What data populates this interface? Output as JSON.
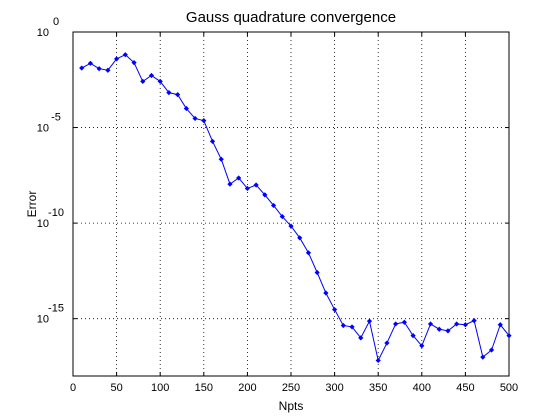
{
  "chart_data": {
    "type": "line",
    "title": "Gauss quadrature convergence",
    "xlabel": "Npts",
    "ylabel": "Error",
    "xlim": [
      0,
      500
    ],
    "ylim_log10": [
      -18,
      0
    ],
    "yscale": "log",
    "grid": true,
    "marker": "diamond",
    "x_ticks": [
      0,
      50,
      100,
      150,
      200,
      250,
      300,
      350,
      400,
      450,
      500
    ],
    "x_tick_labels": [
      "0",
      "50",
      "100",
      "150",
      "200",
      "250",
      "300",
      "350",
      "400",
      "450",
      "500"
    ],
    "y_ticks": [
      {
        "base": "10",
        "exp": "0",
        "log10": 0
      },
      {
        "base": "10",
        "exp": "-5",
        "log10": -5
      },
      {
        "base": "10",
        "exp": "-10",
        "log10": -10
      },
      {
        "base": "10",
        "exp": "-15",
        "log10": -15
      }
    ],
    "series": [
      {
        "color": "#0000ff",
        "x": [
          10,
          20,
          30,
          40,
          50,
          60,
          70,
          80,
          90,
          100,
          110,
          120,
          130,
          140,
          150,
          160,
          170,
          180,
          190,
          200,
          210,
          220,
          230,
          240,
          250,
          260,
          270,
          280,
          290,
          300,
          310,
          320,
          330,
          340,
          350,
          360,
          370,
          380,
          390,
          400,
          410,
          420,
          430,
          440,
          450,
          460,
          470,
          480,
          490,
          500
        ],
        "y": [
          "1.3e-2",
          "2.3e-2",
          "1.2e-2",
          "1.0e-2",
          "3.9e-2",
          "6.5e-2",
          "2.5e-2",
          "2.6e-3",
          "5.3e-3",
          "2.6e-3",
          "6.7e-4",
          "5.3e-4",
          "9.9e-5",
          "3.0e-5",
          "2.3e-5",
          "1.9e-6",
          "2.2e-7",
          "1.1e-8",
          "2.3e-8",
          "6.5e-9",
          "9.9e-9",
          "3.0e-9",
          "8.4e-10",
          "2.2e-10",
          "7.0e-11",
          "1.7e-11",
          "2.8e-12",
          "2.6e-13",
          "2.2e-14",
          "3.0e-15",
          "4.4e-16",
          "3.7e-16",
          "9.9e-17",
          "7.4e-16",
          "6.5e-18",
          "5.3e-17",
          "5.3e-16",
          "6.5e-16",
          "1.3e-16",
          "3.8e-17",
          "5.3e-16",
          "2.8e-16",
          "2.3e-16",
          "5.3e-16",
          "4.8e-16",
          "7.9e-16",
          "9.7e-18",
          "2.3e-17",
          "4.8e-16",
          "1.3e-16"
        ]
      }
    ]
  }
}
